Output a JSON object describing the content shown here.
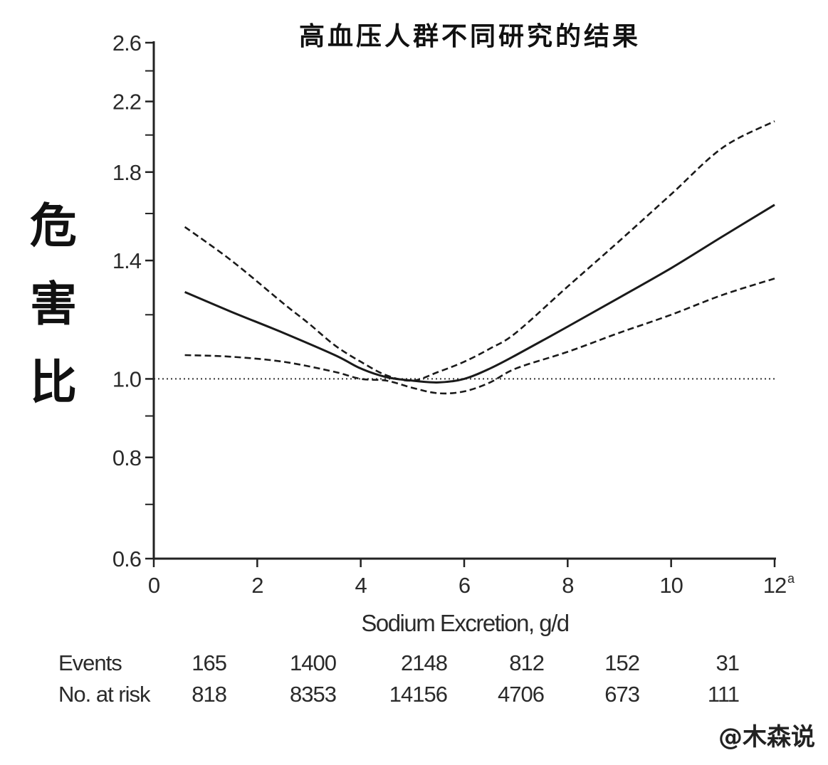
{
  "chart_data": {
    "type": "line",
    "title": "高血压人群不同研究的结果",
    "ylabel": "危害比",
    "xlabel": "Sodium Excretion, g/d",
    "xlim": [
      0,
      12
    ],
    "ylim": [
      0.6,
      2.6
    ],
    "y_scale": "log",
    "x_ticks": [
      0,
      2,
      4,
      6,
      8,
      10,
      12
    ],
    "x_tick_labels": [
      "0",
      "2",
      "4",
      "6",
      "8",
      "10",
      "12"
    ],
    "x_last_tick_superscript": "a",
    "y_ticks": [
      0.6,
      0.8,
      1.0,
      1.4,
      1.8,
      2.2,
      2.6
    ],
    "y_tick_labels": [
      "0.6",
      "0.8",
      "1.0",
      "1.4",
      "1.8",
      "2.2",
      "2.6"
    ],
    "y_minor_ticks": [
      0.7,
      0.9,
      1.2,
      1.6,
      2.0,
      2.4
    ],
    "reference_line": 1.0,
    "series": [
      {
        "style": "solid",
        "x": [
          0.6,
          1.5,
          2.5,
          3.5,
          4.0,
          4.5,
          5.0,
          5.5,
          6.0,
          6.5,
          7.0,
          8.0,
          9.0,
          10.0,
          11.0,
          12.0
        ],
        "y": [
          1.28,
          1.21,
          1.14,
          1.07,
          1.03,
          1.005,
          0.995,
          0.99,
          1.0,
          1.03,
          1.07,
          1.16,
          1.26,
          1.37,
          1.5,
          1.64
        ]
      },
      {
        "style": "dashed",
        "x": [
          0.6,
          1.5,
          2.5,
          3.0,
          3.5,
          4.0,
          4.5,
          5.0,
          5.5,
          6.0,
          6.5,
          7.0,
          8.0,
          9.0,
          10.0,
          11.0,
          12.0
        ],
        "y": [
          1.54,
          1.4,
          1.24,
          1.17,
          1.1,
          1.05,
          1.01,
          0.995,
          1.02,
          1.05,
          1.09,
          1.14,
          1.3,
          1.48,
          1.69,
          1.93,
          2.08
        ]
      },
      {
        "style": "dashed",
        "x": [
          0.6,
          1.5,
          2.5,
          3.5,
          4.0,
          4.5,
          5.0,
          5.5,
          6.0,
          6.5,
          7.0,
          8.0,
          9.0,
          10.0,
          11.0,
          12.0
        ],
        "y": [
          1.07,
          1.065,
          1.05,
          1.02,
          1.0,
          0.995,
          0.975,
          0.96,
          0.965,
          0.99,
          1.03,
          1.08,
          1.14,
          1.2,
          1.27,
          1.33
        ]
      }
    ],
    "risk_table": {
      "rows": [
        {
          "label": "Events",
          "values": [
            "165",
            "1400",
            "2148",
            "812",
            "152",
            "31"
          ]
        },
        {
          "label": "No. at risk",
          "values": [
            "818",
            "8353",
            "14156",
            "4706",
            "673",
            "111"
          ]
        }
      ]
    },
    "watermark": "@木森说"
  },
  "colors": {
    "line": "#1a1a1a",
    "axis": "#222222",
    "background": "#ffffff"
  }
}
